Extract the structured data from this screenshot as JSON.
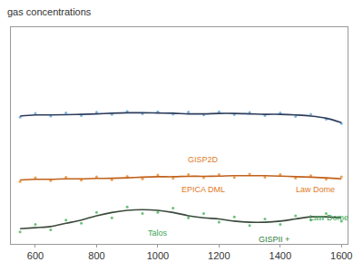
{
  "chart_data": {
    "type": "line",
    "title": "gas concentrations",
    "x": [
      550,
      600,
      650,
      700,
      750,
      800,
      850,
      900,
      950,
      1000,
      1050,
      1100,
      1150,
      1200,
      1250,
      1300,
      1350,
      1400,
      1450,
      1500,
      1550,
      1600
    ],
    "series": [
      {
        "type": "scatter",
        "marker": "circle",
        "color": "#7fb8e0",
        "values": [
          58.5,
          60.2,
          59.0,
          60.5,
          59.2,
          60.8,
          59.7,
          61.2,
          60.0,
          61.0,
          59.8,
          60.9,
          59.5,
          61.0,
          59.6,
          60.7,
          59.2,
          60.5,
          58.8,
          59.8,
          57.5,
          55.5
        ]
      },
      {
        "type": "line",
        "color": "#2d3d5c",
        "line_style": "solid",
        "values": [
          59.0,
          59.5,
          59.5,
          59.6,
          59.8,
          60.0,
          60.3,
          60.5,
          60.5,
          60.4,
          60.3,
          60.0,
          60.0,
          60.2,
          60.2,
          60.0,
          59.8,
          59.8,
          59.5,
          59.0,
          58.0,
          56.0
        ]
      },
      {
        "type": "scatter",
        "marker": "circle",
        "color": "#f0a050",
        "values": [
          28.8,
          30.5,
          29.2,
          30.8,
          29.4,
          31.0,
          29.6,
          31.2,
          30.0,
          31.8,
          30.2,
          32.0,
          30.5,
          32.0,
          30.6,
          32.2,
          30.8,
          32.0,
          30.3,
          31.5,
          29.8,
          31.0
        ]
      },
      {
        "type": "line",
        "color": "#c0601a",
        "line_style": "solid",
        "values": [
          29.5,
          29.8,
          29.8,
          30.0,
          30.0,
          30.2,
          30.3,
          30.5,
          30.8,
          31.0,
          31.0,
          31.2,
          31.2,
          31.3,
          31.5,
          31.5,
          31.5,
          31.3,
          31.0,
          30.8,
          30.5,
          30.0
        ]
      },
      {
        "type": "scatter",
        "marker": "circle",
        "color": "#6cc07a",
        "values": [
          5.5,
          9.0,
          6.5,
          11.0,
          9.5,
          14.5,
          12.0,
          17.0,
          14.0,
          14.5,
          16.5,
          12.0,
          14.0,
          10.0,
          12.5,
          8.5,
          11.5,
          9.0,
          13.0,
          11.0,
          14.0,
          10.5
        ]
      },
      {
        "type": "line",
        "color": "#3a4a3a",
        "line_style": "solid",
        "values": [
          7.0,
          7.5,
          8.0,
          9.5,
          11.0,
          13.0,
          14.5,
          15.5,
          15.8,
          15.5,
          14.5,
          13.0,
          12.0,
          11.5,
          10.5,
          10.0,
          10.0,
          10.5,
          11.5,
          12.5,
          12.5,
          12.0
        ]
      }
    ],
    "annotations": [
      {
        "text": "GISP2D",
        "x": 1150,
        "y": 39,
        "color": "#e07b1f"
      },
      {
        "text": "EPICA DML",
        "x": 1150,
        "y": 25,
        "color": "#e07b1f"
      },
      {
        "text": "Law Dome",
        "x": 1515,
        "y": 25,
        "color": "#e07b1f"
      },
      {
        "text": "Talos",
        "x": 1000,
        "y": 5,
        "color": "#3aa655"
      },
      {
        "text": "GISPII +",
        "x": 1380,
        "y": 2,
        "color": "#2e7d3a"
      },
      {
        "text": "Law Dome",
        "x": 1560,
        "y": 12,
        "color": "#3aa655"
      }
    ],
    "xlim": [
      520,
      1620
    ],
    "ylim": [
      0,
      100
    ],
    "xticks": [
      600,
      800,
      1000,
      1200,
      1400,
      1600
    ],
    "grid": false,
    "tick_labels": "x"
  }
}
